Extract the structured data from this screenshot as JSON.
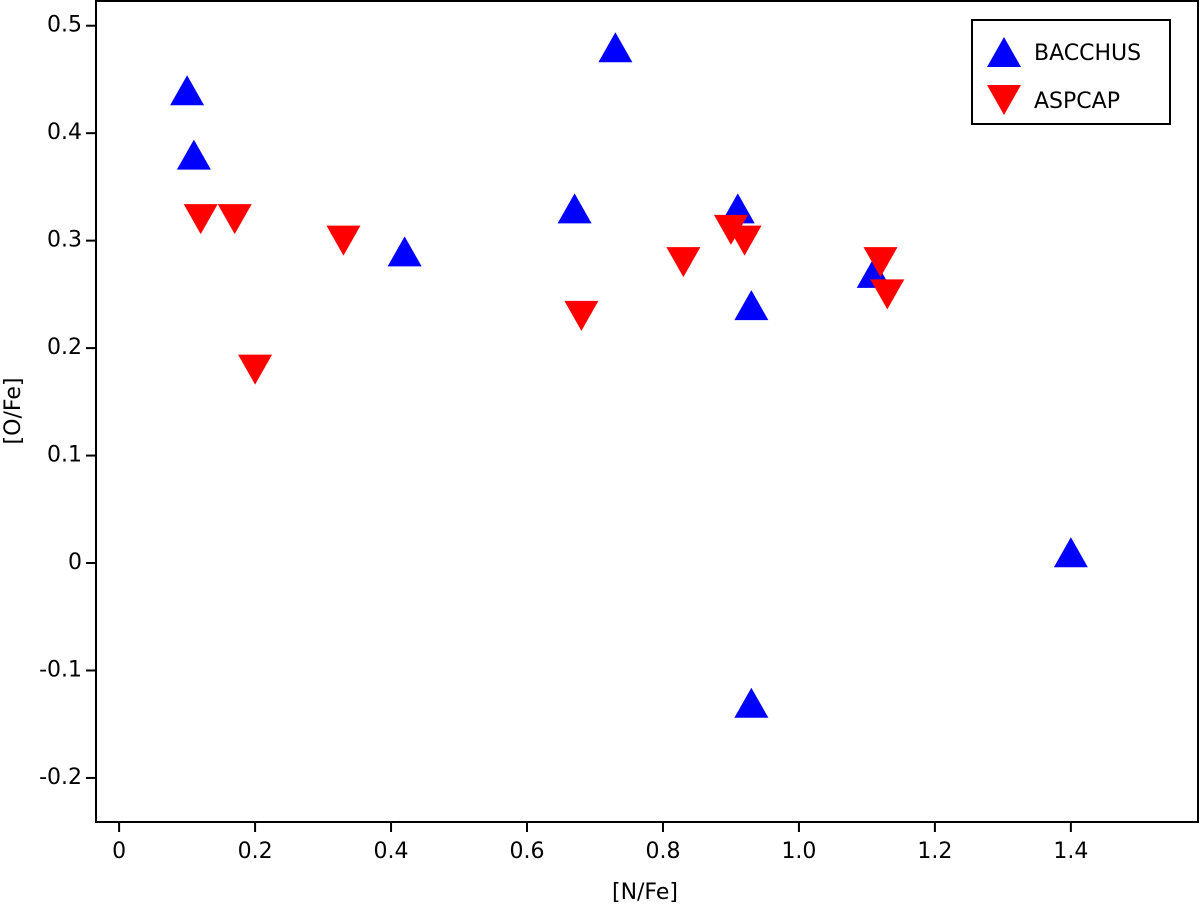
{
  "chart_data": {
    "type": "scatter",
    "x_label": "[N/Fe]",
    "y_label": "[O/Fe]",
    "xlim": [
      -0.034,
      1.587
    ],
    "ylim": [
      -0.241,
      0.523
    ],
    "xticks": [
      0,
      0.2,
      0.4,
      0.6,
      0.8,
      {
        "value": 1,
        "label": "1.0"
      },
      1.2,
      1.4
    ],
    "yticks": [
      -0.2,
      -0.1,
      0,
      0.1,
      0.2,
      0.3,
      0.4,
      0.5
    ],
    "legend": "upper right",
    "series": [
      {
        "name": "BACCHUS",
        "color": "#0000ff",
        "marker": "triangle-up",
        "x": [
          0.1,
          0.11,
          0.42,
          0.67,
          0.73,
          0.91,
          0.93,
          1.11,
          1.4,
          0.93
        ],
        "values": [
          0.44,
          0.38,
          0.29,
          0.33,
          0.48,
          0.33,
          0.24,
          0.27,
          0.01,
          -0.13
        ]
      },
      {
        "name": "ASPCAP",
        "color": "#ff0000",
        "marker": "triangle-down",
        "x": [
          0.12,
          0.17,
          0.2,
          0.33,
          0.68,
          0.83,
          0.9,
          0.92,
          1.12,
          1.13
        ],
        "values": [
          0.32,
          0.32,
          0.18,
          0.3,
          0.23,
          0.28,
          0.31,
          0.3,
          0.28,
          0.25
        ]
      }
    ]
  }
}
